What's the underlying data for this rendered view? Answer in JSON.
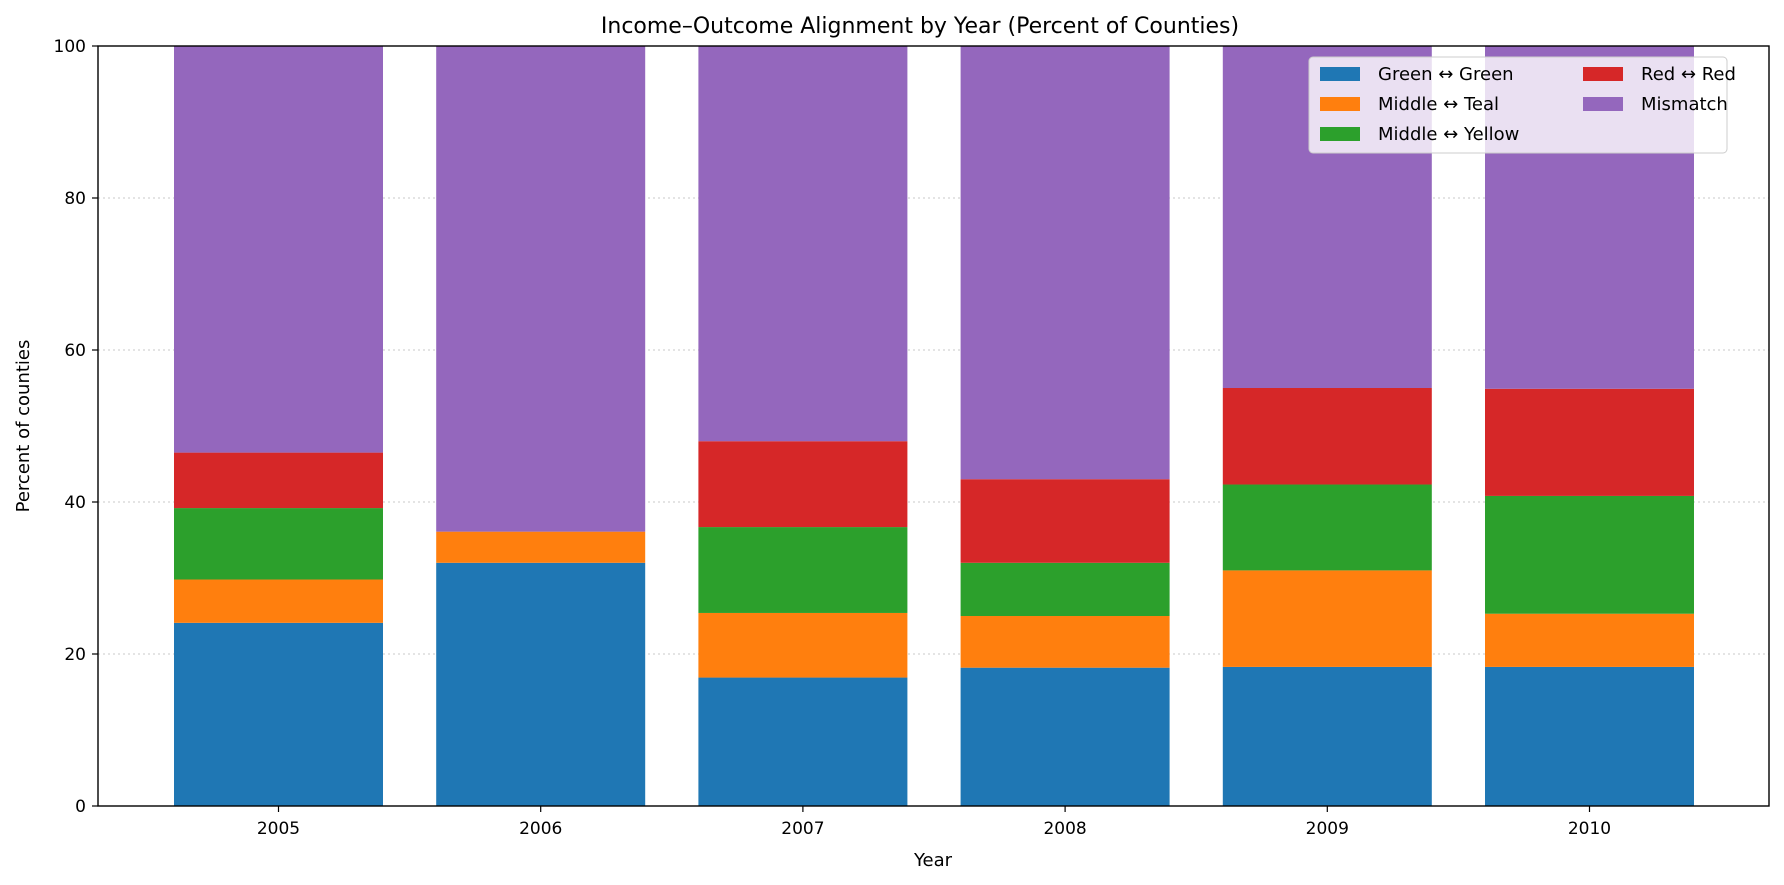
{
  "chart_data": {
    "type": "bar",
    "stacked": true,
    "title": "Income–Outcome Alignment by Year (Percent of Counties)",
    "xlabel": "Year",
    "ylabel": "Percent of counties",
    "categories": [
      "2005",
      "2006",
      "2007",
      "2008",
      "2009",
      "2010"
    ],
    "ylim": [
      0,
      100
    ],
    "yticks": [
      0,
      20,
      40,
      60,
      80,
      100
    ],
    "grid": "y-dotted",
    "legend": {
      "placement": "top-right",
      "columns": 2
    },
    "series": [
      {
        "name": "Green ↔ Green",
        "color": "#1f77b4",
        "values": [
          24.1,
          32.0,
          16.9,
          18.2,
          18.3,
          18.3
        ]
      },
      {
        "name": "Middle ↔ Teal",
        "color": "#ff7f0e",
        "values": [
          5.7,
          4.1,
          8.5,
          6.8,
          12.7,
          7.0
        ]
      },
      {
        "name": "Middle ↔ Yellow",
        "color": "#2ca02c",
        "values": [
          9.4,
          0.0,
          11.3,
          7.0,
          11.3,
          15.5
        ]
      },
      {
        "name": "Red ↔ Red",
        "color": "#d62728",
        "values": [
          7.3,
          0.0,
          11.3,
          11.0,
          12.7,
          14.1
        ]
      },
      {
        "name": "Mismatch",
        "color": "#9467bd",
        "values": [
          53.5,
          63.9,
          52.0,
          57.0,
          45.0,
          45.1
        ]
      }
    ]
  }
}
